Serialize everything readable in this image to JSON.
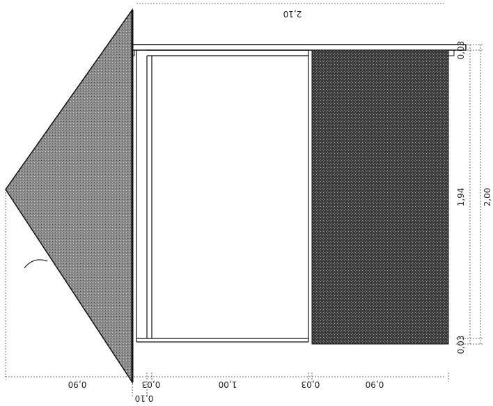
{
  "drawing": {
    "dimensions": {
      "top_overall": "2,10",
      "right_top_edge": "0,03",
      "right_main_height": "1,94",
      "right_overall": "2,00",
      "right_bottom_edge": "0,03",
      "bottom_left": "0,90",
      "bottom_small_1": "0,03",
      "bottom_center": "1,00",
      "bottom_small_2": "0,03",
      "bottom_right": "0,90",
      "bottom_below": "0,10"
    },
    "colors": {
      "shaded_fill": "#3a3a3a",
      "triangle_fill": "#8e8e8e",
      "line": "#111111"
    }
  }
}
